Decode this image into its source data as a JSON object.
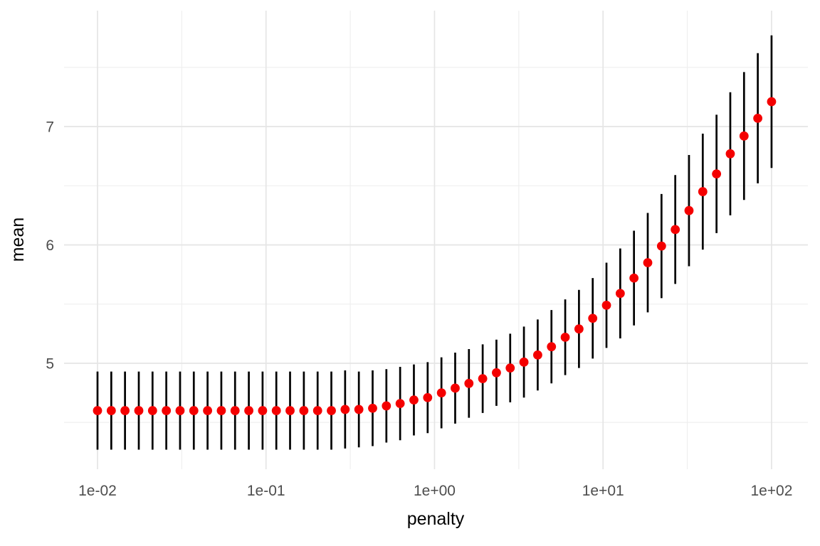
{
  "chart_data": {
    "type": "scatter",
    "title": "",
    "xlabel": "penalty",
    "ylabel": "mean",
    "x_scale": "log10",
    "grid": true,
    "legend": "none",
    "error_bars": true,
    "xlim_log10": [
      -2.1985,
      2.2157
    ],
    "ylim": [
      4.105,
      7.979
    ],
    "x_major_breaks_log10": [
      -2,
      -1,
      0,
      1,
      2
    ],
    "x_minor_breaks_log10": [
      -1.5,
      -0.5,
      0.5,
      1.5
    ],
    "y_major_breaks": [
      5,
      6,
      7
    ],
    "y_minor_breaks": [
      4.5,
      5.5,
      6.5,
      7.5
    ],
    "x_tick_labels": [
      "1e-02",
      "1e-01",
      "1e+00",
      "1e+01",
      "1e+02"
    ],
    "y_tick_labels": [
      "5",
      "6",
      "7"
    ],
    "colors": {
      "point": "#F40000",
      "errorbar": "#000000",
      "grid_major": "#E5E5E5",
      "grid_minor": "#EEEEEE",
      "tick_text": "#4D4D4D",
      "title_text": "#000000",
      "background": "#FFFFFF"
    },
    "points": [
      {
        "penalty": 0.01,
        "mean": 4.6,
        "std_err": 0.33
      },
      {
        "penalty": 0.01207,
        "mean": 4.6,
        "std_err": 0.33
      },
      {
        "penalty": 0.01456,
        "mean": 4.6,
        "std_err": 0.33
      },
      {
        "penalty": 0.01758,
        "mean": 4.6,
        "std_err": 0.33
      },
      {
        "penalty": 0.02121,
        "mean": 4.6,
        "std_err": 0.33
      },
      {
        "penalty": 0.0256,
        "mean": 4.6,
        "std_err": 0.33
      },
      {
        "penalty": 0.03089,
        "mean": 4.6,
        "std_err": 0.33
      },
      {
        "penalty": 0.03728,
        "mean": 4.6,
        "std_err": 0.33
      },
      {
        "penalty": 0.04499,
        "mean": 4.6,
        "std_err": 0.33
      },
      {
        "penalty": 0.05429,
        "mean": 4.6,
        "std_err": 0.33
      },
      {
        "penalty": 0.06551,
        "mean": 4.6,
        "std_err": 0.33
      },
      {
        "penalty": 0.07906,
        "mean": 4.6,
        "std_err": 0.33
      },
      {
        "penalty": 0.09541,
        "mean": 4.6,
        "std_err": 0.33
      },
      {
        "penalty": 0.1151,
        "mean": 4.6,
        "std_err": 0.33
      },
      {
        "penalty": 0.1389,
        "mean": 4.6,
        "std_err": 0.33
      },
      {
        "penalty": 0.1677,
        "mean": 4.6,
        "std_err": 0.33
      },
      {
        "penalty": 0.2024,
        "mean": 4.6,
        "std_err": 0.33
      },
      {
        "penalty": 0.2442,
        "mean": 4.6,
        "std_err": 0.33
      },
      {
        "penalty": 0.2947,
        "mean": 4.61,
        "std_err": 0.33
      },
      {
        "penalty": 0.3556,
        "mean": 4.61,
        "std_err": 0.32
      },
      {
        "penalty": 0.4292,
        "mean": 4.62,
        "std_err": 0.32
      },
      {
        "penalty": 0.5179,
        "mean": 4.64,
        "std_err": 0.31
      },
      {
        "penalty": 0.625,
        "mean": 4.66,
        "std_err": 0.31
      },
      {
        "penalty": 0.7543,
        "mean": 4.69,
        "std_err": 0.3
      },
      {
        "penalty": 0.9103,
        "mean": 4.71,
        "std_err": 0.3
      },
      {
        "penalty": 1.099,
        "mean": 4.75,
        "std_err": 0.3
      },
      {
        "penalty": 1.326,
        "mean": 4.79,
        "std_err": 0.3
      },
      {
        "penalty": 1.6,
        "mean": 4.83,
        "std_err": 0.29
      },
      {
        "penalty": 1.931,
        "mean": 4.87,
        "std_err": 0.29
      },
      {
        "penalty": 2.33,
        "mean": 4.92,
        "std_err": 0.28
      },
      {
        "penalty": 2.812,
        "mean": 4.96,
        "std_err": 0.29
      },
      {
        "penalty": 3.393,
        "mean": 5.01,
        "std_err": 0.3
      },
      {
        "penalty": 4.095,
        "mean": 5.07,
        "std_err": 0.3
      },
      {
        "penalty": 4.942,
        "mean": 5.14,
        "std_err": 0.31
      },
      {
        "penalty": 5.964,
        "mean": 5.22,
        "std_err": 0.32
      },
      {
        "penalty": 7.197,
        "mean": 5.29,
        "std_err": 0.33
      },
      {
        "penalty": 8.685,
        "mean": 5.38,
        "std_err": 0.34
      },
      {
        "penalty": 10.48,
        "mean": 5.49,
        "std_err": 0.36
      },
      {
        "penalty": 12.65,
        "mean": 5.59,
        "std_err": 0.38
      },
      {
        "penalty": 15.26,
        "mean": 5.72,
        "std_err": 0.4
      },
      {
        "penalty": 18.42,
        "mean": 5.85,
        "std_err": 0.42
      },
      {
        "penalty": 22.23,
        "mean": 5.99,
        "std_err": 0.44
      },
      {
        "penalty": 26.83,
        "mean": 6.13,
        "std_err": 0.46
      },
      {
        "penalty": 32.37,
        "mean": 6.29,
        "std_err": 0.47
      },
      {
        "penalty": 39.07,
        "mean": 6.45,
        "std_err": 0.49
      },
      {
        "penalty": 47.15,
        "mean": 6.6,
        "std_err": 0.5
      },
      {
        "penalty": 56.9,
        "mean": 6.77,
        "std_err": 0.52
      },
      {
        "penalty": 68.67,
        "mean": 6.92,
        "std_err": 0.54
      },
      {
        "penalty": 82.86,
        "mean": 7.07,
        "std_err": 0.55
      },
      {
        "penalty": 100.0,
        "mean": 7.21,
        "std_err": 0.56
      }
    ]
  }
}
